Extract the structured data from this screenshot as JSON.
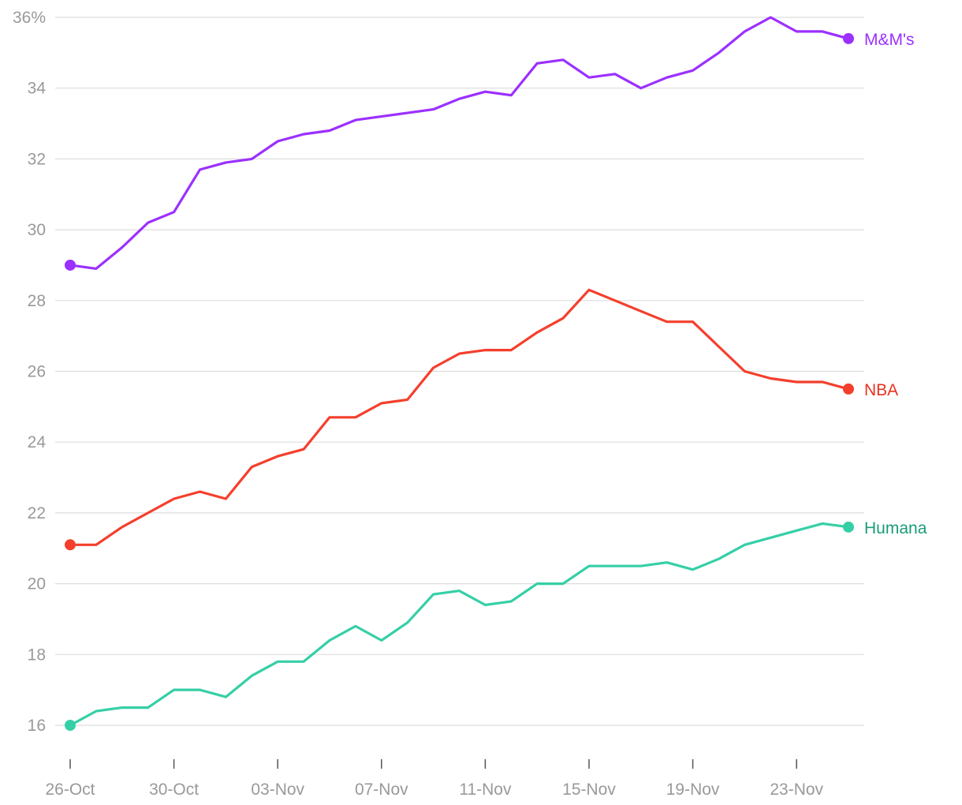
{
  "chart_data": {
    "type": "line",
    "title": "",
    "xlabel": "",
    "ylabel": "",
    "x": [
      "26-Oct",
      "27-Oct",
      "28-Oct",
      "29-Oct",
      "30-Oct",
      "31-Oct",
      "01-Nov",
      "02-Nov",
      "03-Nov",
      "04-Nov",
      "05-Nov",
      "06-Nov",
      "07-Nov",
      "08-Nov",
      "09-Nov",
      "10-Nov",
      "11-Nov",
      "12-Nov",
      "13-Nov",
      "14-Nov",
      "15-Nov",
      "16-Nov",
      "17-Nov",
      "18-Nov",
      "19-Nov",
      "20-Nov",
      "21-Nov",
      "22-Nov",
      "23-Nov",
      "24-Nov",
      "25-Nov"
    ],
    "x_tick_labels": [
      "26-Oct",
      "30-Oct",
      "03-Nov",
      "07-Nov",
      "11-Nov",
      "15-Nov",
      "19-Nov",
      "23-Nov"
    ],
    "y_tick_labels": [
      "16",
      "18",
      "20",
      "22",
      "24",
      "26",
      "28",
      "30",
      "32",
      "34",
      "36%"
    ],
    "y_ticks": [
      16,
      18,
      20,
      22,
      24,
      26,
      28,
      30,
      32,
      34,
      36
    ],
    "ylim": [
      16,
      36
    ],
    "grid": true,
    "series": [
      {
        "name": "M&M's",
        "color": "#9b30ff",
        "label_color": "#9b30ff",
        "values": [
          29.0,
          28.9,
          29.5,
          30.2,
          30.5,
          31.7,
          31.9,
          32.0,
          32.5,
          32.7,
          32.8,
          33.1,
          33.2,
          33.3,
          33.4,
          33.7,
          33.9,
          33.8,
          34.7,
          34.8,
          34.3,
          34.4,
          34.0,
          34.3,
          34.5,
          35.0,
          35.6,
          36.0,
          35.6,
          35.6,
          35.4
        ]
      },
      {
        "name": "NBA",
        "color": "#f43f2c",
        "label_color": "#e8321f",
        "values": [
          21.1,
          21.1,
          21.6,
          22.0,
          22.4,
          22.6,
          22.4,
          23.3,
          23.6,
          23.8,
          24.7,
          24.7,
          25.1,
          25.2,
          26.1,
          26.5,
          26.6,
          26.6,
          27.1,
          27.5,
          28.3,
          28.0,
          27.7,
          27.4,
          27.4,
          26.7,
          26.0,
          25.8,
          25.7,
          25.7,
          25.5
        ]
      },
      {
        "name": "Humana",
        "color": "#35cfa6",
        "label_color": "#1a9c78",
        "values": [
          16.0,
          16.4,
          16.5,
          16.5,
          17.0,
          17.0,
          16.8,
          17.4,
          17.8,
          17.8,
          18.4,
          18.8,
          18.4,
          18.9,
          19.7,
          19.8,
          19.4,
          19.5,
          20.0,
          20.0,
          20.5,
          20.5,
          20.5,
          20.6,
          20.4,
          20.7,
          21.1,
          21.3,
          21.5,
          21.7,
          21.6
        ]
      }
    ]
  }
}
